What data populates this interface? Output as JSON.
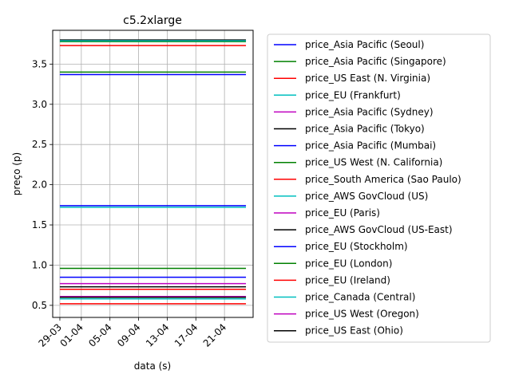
{
  "chart_data": {
    "type": "line",
    "title": "c5.2xlarge",
    "xlabel": "data (s)",
    "ylabel": "preço (p)",
    "x_range": [
      "2018-03-29",
      "2018-04-24"
    ],
    "x_ticks": [
      {
        "date": "2018-03-29",
        "label": "29-03"
      },
      {
        "date": "2018-04-01",
        "label": "01-04"
      },
      {
        "date": "2018-04-05",
        "label": "05-04"
      },
      {
        "date": "2018-04-09",
        "label": "09-04"
      },
      {
        "date": "2018-04-13",
        "label": "13-04"
      },
      {
        "date": "2018-04-17",
        "label": "17-04"
      },
      {
        "date": "2018-04-21",
        "label": "21-04"
      }
    ],
    "xlim": [
      "2018-03-28",
      "2018-04-25"
    ],
    "ylim": [
      0.35,
      3.92
    ],
    "y_ticks": [
      0.5,
      1.0,
      1.5,
      2.0,
      2.5,
      3.0,
      3.5
    ],
    "y_tick_labels": [
      "0.5",
      "1.0",
      "1.5",
      "2.0",
      "2.5",
      "3.0",
      "3.5"
    ],
    "grid": true,
    "legend_position": "outside-right",
    "series": [
      {
        "name": "price_Asia Pacific (Seoul)",
        "color": "#0000ff",
        "value": 3.37
      },
      {
        "name": "price_Asia Pacific (Singapore)",
        "color": "#008000",
        "value": 3.4
      },
      {
        "name": "price_US East (N. Virginia)",
        "color": "#ff0000",
        "value": 0.52
      },
      {
        "name": "price_EU (Frankfurt)",
        "color": "#00bfbf",
        "value": 0.58
      },
      {
        "name": "price_Asia Pacific (Sydney)",
        "color": "#bf00bf",
        "value": 0.77
      },
      {
        "name": "price_Asia Pacific (Tokyo)",
        "color": "#000000",
        "value": 0.73
      },
      {
        "name": "price_Asia Pacific (Mumbai)",
        "color": "#0000ff",
        "value": 0.85
      },
      {
        "name": "price_US West (N. California)",
        "color": "#008000",
        "value": 0.96
      },
      {
        "name": "price_South America (Sao Paulo)",
        "color": "#ff0000",
        "value": 0.7
      },
      {
        "name": "price_AWS GovCloud (US)",
        "color": "#00bfbf",
        "value": 1.72
      },
      {
        "name": "price_EU (Paris)",
        "color": "#bf00bf",
        "value": 0.61
      },
      {
        "name": "price_AWS GovCloud (US-East)",
        "color": "#000000",
        "value": 3.8
      },
      {
        "name": "price_EU (Stockholm)",
        "color": "#0000ff",
        "value": 1.74
      },
      {
        "name": "price_EU (London)",
        "color": "#008000",
        "value": 3.78
      },
      {
        "name": "price_EU (Ireland)",
        "color": "#ff0000",
        "value": 3.73
      },
      {
        "name": "price_Canada (Central)",
        "color": "#00bfbf",
        "value": 3.79
      },
      {
        "name": "price_US West (Oregon)",
        "color": "#bf00bf",
        "value": 0.6
      },
      {
        "name": "price_US East (Ohio)",
        "color": "#000000",
        "value": 0.6
      }
    ]
  }
}
